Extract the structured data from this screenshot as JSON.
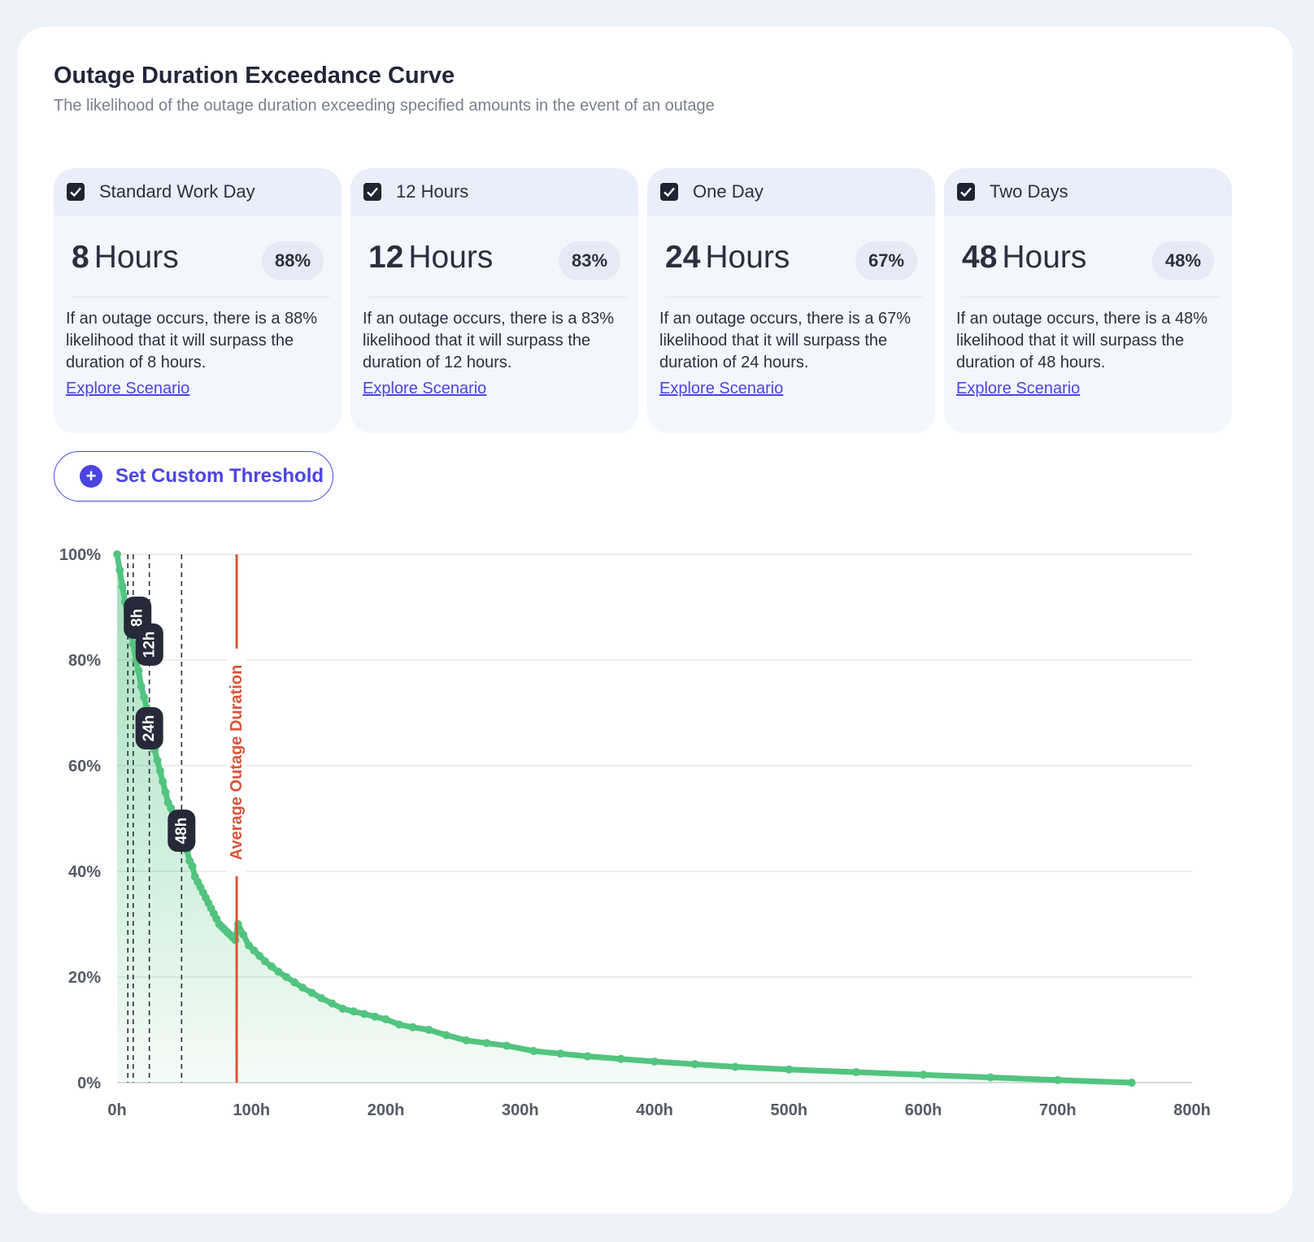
{
  "header": {
    "title": "Outage Duration Exceedance Curve",
    "subtitle": "The likelihood of the outage duration exceeding specified amounts in the event of an outage"
  },
  "tiles": [
    {
      "label": "Standard Work Day",
      "number": "8",
      "unit": "Hours",
      "pct": "88%",
      "desc": "If an outage occurs, there is a 88% likelihood that it will surpass the duration of 8 hours.",
      "link": "Explore Scenario"
    },
    {
      "label": "12 Hours",
      "number": "12",
      "unit": "Hours",
      "pct": "83%",
      "desc": "If an outage occurs, there is a 83% likelihood that it will surpass the duration of 12 hours.",
      "link": "Explore Scenario"
    },
    {
      "label": "One Day",
      "number": "24",
      "unit": "Hours",
      "pct": "67%",
      "desc": "If an outage occurs, there is a 67% likelihood that it will surpass the duration of 24 hours.",
      "link": "Explore Scenario"
    },
    {
      "label": "Two Days",
      "number": "48",
      "unit": "Hours",
      "pct": "48%",
      "desc": "If an outage occurs, there is a 48% likelihood that it will surpass the duration of 48 hours.",
      "link": "Explore Scenario"
    }
  ],
  "actions": {
    "custom_threshold_label": "Set Custom Threshold"
  },
  "colors": {
    "accent": "#4a45e0",
    "curve": "#52c47f",
    "average": "#d9553b",
    "dark_label": "#262a38"
  },
  "chart_data": {
    "type": "area",
    "title": "",
    "xlabel": "",
    "ylabel": "",
    "xlim": [
      0,
      800
    ],
    "ylim": [
      0,
      100
    ],
    "x_ticks": [
      0,
      100,
      200,
      300,
      400,
      500,
      600,
      700,
      800
    ],
    "x_tick_labels": [
      "0h",
      "100h",
      "200h",
      "300h",
      "400h",
      "500h",
      "600h",
      "700h",
      "800h"
    ],
    "y_ticks": [
      0,
      20,
      40,
      60,
      80,
      100
    ],
    "y_tick_labels": [
      "0%",
      "20%",
      "40%",
      "60%",
      "80%",
      "100%"
    ],
    "grid": true,
    "series": [
      {
        "x": [
          0,
          2,
          4,
          6,
          8,
          10,
          12,
          14,
          16,
          18,
          20,
          22,
          24,
          26,
          28,
          30,
          32,
          34,
          36,
          38,
          40,
          42,
          44,
          46,
          48,
          50,
          52,
          54,
          56,
          58,
          60,
          62,
          64,
          66,
          68,
          70,
          72,
          74,
          76,
          78,
          80,
          82,
          84,
          86,
          88,
          90,
          94,
          98,
          102,
          106,
          110,
          115,
          120,
          126,
          132,
          138,
          145,
          152,
          160,
          168,
          176,
          184,
          192,
          200,
          210,
          220,
          232,
          245,
          260,
          275,
          290,
          310,
          330,
          350,
          375,
          400,
          430,
          460,
          500,
          550,
          600,
          650,
          700,
          755
        ],
        "y": [
          100,
          97,
          94,
          91,
          88,
          86,
          83,
          80,
          78,
          75,
          73,
          71,
          67,
          65,
          63,
          61,
          59,
          57,
          55,
          53,
          52,
          50,
          49,
          48,
          48,
          46,
          44,
          42,
          41,
          39,
          38,
          37,
          36,
          35,
          34,
          33,
          32,
          31,
          30,
          29.5,
          29,
          28.5,
          28,
          27.5,
          27,
          30,
          28,
          26,
          25,
          24,
          23,
          22,
          21,
          20,
          19,
          18,
          17,
          16,
          15,
          14,
          13.5,
          13,
          12.5,
          12,
          11,
          10.5,
          10,
          9,
          8,
          7.5,
          7,
          6,
          5.5,
          5,
          4.5,
          4,
          3.5,
          3,
          2.5,
          2,
          1.5,
          1,
          0.5,
          0
        ]
      }
    ],
    "thresholds": [
      {
        "x": 8,
        "label": "8h"
      },
      {
        "x": 12,
        "label": "12h"
      },
      {
        "x": 24,
        "label": "24h"
      },
      {
        "x": 48,
        "label": "48h"
      }
    ],
    "average": {
      "x": 89,
      "label": "Average Outage Duration"
    }
  }
}
